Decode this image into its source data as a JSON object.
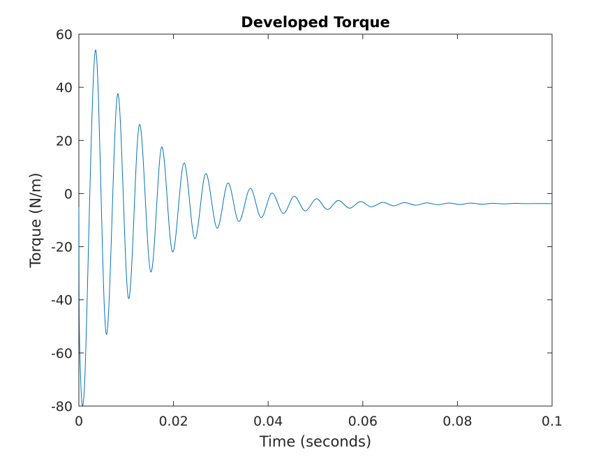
{
  "chart_data": {
    "type": "line",
    "title": "Developed Torque",
    "xlabel": "Time (seconds)",
    "ylabel": "Torque (N/m)",
    "xlim": [
      0,
      0.1
    ],
    "ylim": [
      -80,
      60
    ],
    "xticks": [
      0,
      0.02,
      0.04,
      0.06,
      0.08,
      0.1
    ],
    "xtick_labels": [
      "0",
      "0.02",
      "0.04",
      "0.06",
      "0.08",
      "0.1"
    ],
    "yticks": [
      -80,
      -60,
      -40,
      -20,
      0,
      20,
      40,
      60
    ],
    "ytick_labels": [
      "-80",
      "-60",
      "-40",
      "-20",
      "0",
      "20",
      "40",
      "60"
    ],
    "grid": false,
    "line_color": "#0072bd",
    "series": [
      {
        "x": [
          0,
          0.0002,
          0.0012,
          0.0035,
          0.0058,
          0.0082,
          0.0105,
          0.0128,
          0.0152,
          0.0175,
          0.0198,
          0.0222,
          0.0245,
          0.0268,
          0.0292,
          0.0315,
          0.0338,
          0.0362,
          0.0385,
          0.0408,
          0.0432,
          0.0455,
          0.0478,
          0.0502,
          0.0525,
          0.0548,
          0.0572,
          0.0595,
          0.0618,
          0.0642,
          0.0665,
          0.0688,
          0.0712,
          0.0735,
          0.0758,
          0.0782,
          0.0805,
          0.0828,
          0.0852,
          0.0875,
          0.0898,
          0.0922,
          0.0945,
          0.0968,
          0.1
        ],
        "y": [
          -5,
          -60,
          -72,
          54,
          -53,
          37.5,
          -39.5,
          26,
          -29.5,
          17.5,
          -22,
          11.5,
          -17,
          7.5,
          -13,
          4,
          -10.5,
          2,
          -9,
          0.2,
          -7.5,
          -1,
          -6.5,
          -2,
          -6,
          -2.6,
          -5.5,
          -3,
          -5,
          -3.3,
          -4.6,
          -3.4,
          -4.4,
          -3.5,
          -4.2,
          -3.55,
          -4.1,
          -3.6,
          -4.0,
          -3.65,
          -3.9,
          -3.7,
          -3.8,
          -3.75,
          -3.8
        ]
      }
    ]
  }
}
